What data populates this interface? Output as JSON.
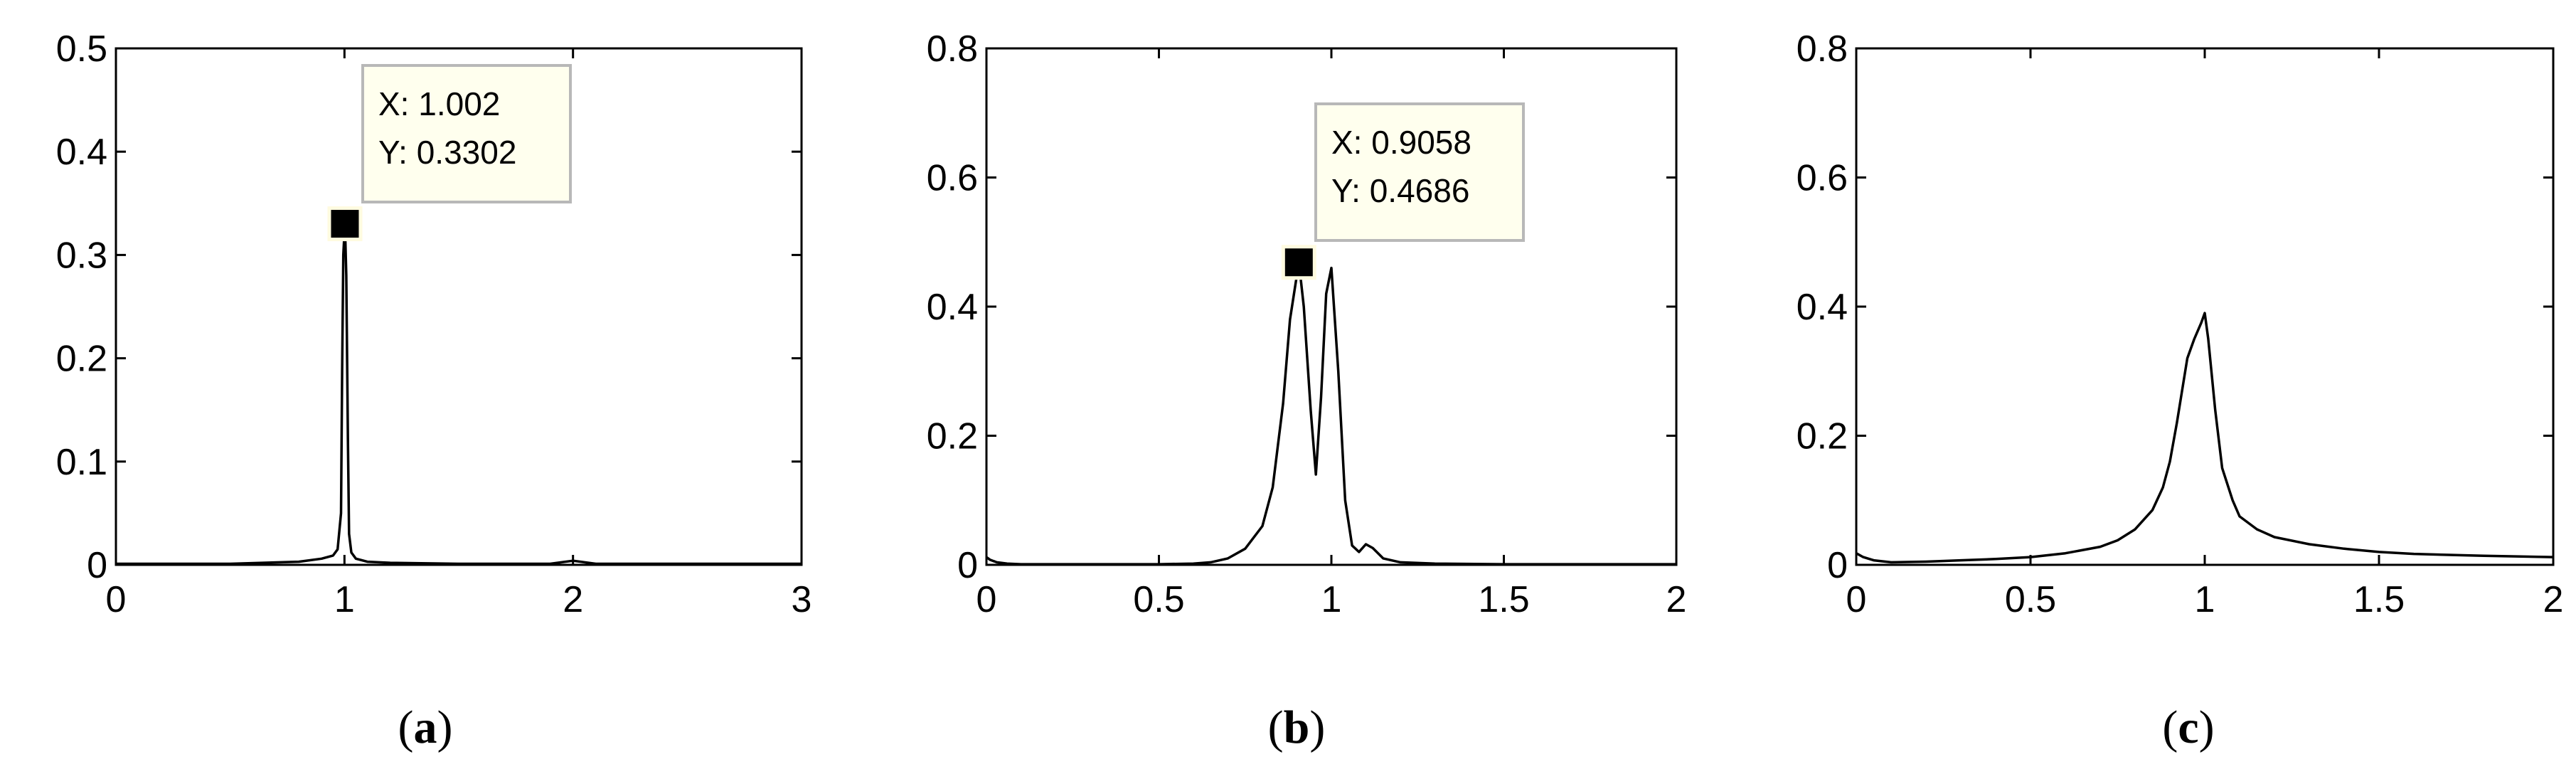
{
  "chart_data": [
    {
      "type": "line",
      "caption": {
        "open": "(",
        "letter": "a",
        "close": ")"
      },
      "xlim": [
        0,
        3
      ],
      "ylim": [
        0,
        0.5
      ],
      "xticks": [
        0,
        1,
        2,
        3
      ],
      "xtick_labels": [
        "0",
        "1",
        "2",
        "3"
      ],
      "yticks": [
        0,
        0.1,
        0.2,
        0.3,
        0.4,
        0.5
      ],
      "ytick_labels": [
        "0",
        "0.1",
        "0.2",
        "0.3",
        "0.4",
        "0.5"
      ],
      "grid": false,
      "x": [
        0,
        0.5,
        0.8,
        0.9,
        0.95,
        0.97,
        0.985,
        0.99,
        0.995,
        1.002,
        1.008,
        1.015,
        1.02,
        1.03,
        1.05,
        1.1,
        1.2,
        1.5,
        1.9,
        2.0,
        2.1,
        2.5,
        3.0
      ],
      "y": [
        0.001,
        0.001,
        0.003,
        0.006,
        0.009,
        0.015,
        0.05,
        0.19,
        0.3,
        0.3302,
        0.28,
        0.12,
        0.03,
        0.012,
        0.006,
        0.003,
        0.002,
        0.001,
        0.001,
        0.004,
        0.001,
        0.001,
        0.001
      ],
      "datatip": {
        "x_label": "X: 1.002",
        "y_label": "Y: 0.3302",
        "x": 1.002,
        "y": 0.3302
      }
    },
    {
      "type": "line",
      "caption": {
        "open": "(",
        "letter": "b",
        "close": ")"
      },
      "xlim": [
        0,
        2
      ],
      "ylim": [
        0,
        0.8
      ],
      "xticks": [
        0,
        0.5,
        1,
        1.5,
        2
      ],
      "xtick_labels": [
        "0",
        "0.5",
        "1",
        "1.5",
        "2"
      ],
      "yticks": [
        0,
        0.2,
        0.4,
        0.6,
        0.8
      ],
      "ytick_labels": [
        "0",
        "0.2",
        "0.4",
        "0.6",
        "0.8"
      ],
      "grid": false,
      "x": [
        0,
        0.01,
        0.03,
        0.06,
        0.1,
        0.3,
        0.5,
        0.6,
        0.65,
        0.7,
        0.75,
        0.8,
        0.83,
        0.86,
        0.88,
        0.9058,
        0.92,
        0.94,
        0.955,
        0.97,
        0.985,
        1.0,
        1.02,
        1.04,
        1.06,
        1.08,
        1.1,
        1.12,
        1.15,
        1.2,
        1.3,
        1.5,
        1.8,
        2.0
      ],
      "y": [
        0.012,
        0.008,
        0.004,
        0.002,
        0.001,
        0.001,
        0.001,
        0.002,
        0.004,
        0.01,
        0.025,
        0.06,
        0.12,
        0.25,
        0.38,
        0.4686,
        0.4,
        0.24,
        0.14,
        0.26,
        0.42,
        0.46,
        0.3,
        0.1,
        0.03,
        0.02,
        0.032,
        0.026,
        0.01,
        0.004,
        0.002,
        0.001,
        0.001,
        0.001
      ],
      "datatip": {
        "x_label": "X: 0.9058",
        "y_label": "Y: 0.4686",
        "x": 0.9058,
        "y": 0.4686
      }
    },
    {
      "type": "line",
      "caption": {
        "open": "(",
        "letter": "c",
        "close": ")"
      },
      "xlim": [
        0,
        2
      ],
      "ylim": [
        0,
        0.8
      ],
      "xticks": [
        0,
        0.5,
        1,
        1.5,
        2
      ],
      "xtick_labels": [
        "0",
        "0.5",
        "1",
        "1.5",
        "2"
      ],
      "yticks": [
        0,
        0.2,
        0.4,
        0.6,
        0.8
      ],
      "ytick_labels": [
        "0",
        "0.2",
        "0.4",
        "0.6",
        "0.8"
      ],
      "grid": false,
      "x": [
        0,
        0.02,
        0.05,
        0.1,
        0.2,
        0.3,
        0.4,
        0.5,
        0.6,
        0.7,
        0.75,
        0.8,
        0.85,
        0.88,
        0.9,
        0.92,
        0.95,
        0.97,
        0.99,
        1.0,
        1.01,
        1.03,
        1.05,
        1.08,
        1.1,
        1.15,
        1.2,
        1.3,
        1.4,
        1.5,
        1.6,
        1.8,
        2.0
      ],
      "y": [
        0.018,
        0.012,
        0.007,
        0.004,
        0.005,
        0.007,
        0.009,
        0.012,
        0.018,
        0.028,
        0.038,
        0.055,
        0.085,
        0.12,
        0.16,
        0.22,
        0.32,
        0.35,
        0.375,
        0.39,
        0.35,
        0.24,
        0.15,
        0.1,
        0.075,
        0.055,
        0.043,
        0.032,
        0.025,
        0.02,
        0.017,
        0.014,
        0.012
      ]
    }
  ]
}
